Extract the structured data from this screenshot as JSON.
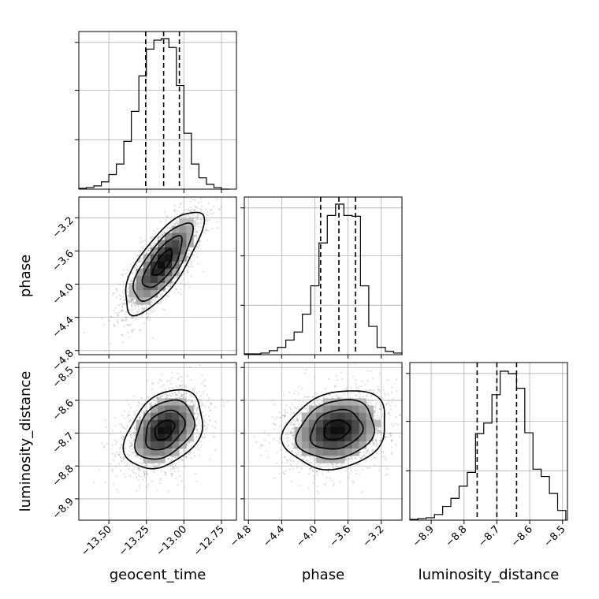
{
  "chart_data": {
    "type": "corner",
    "parameters": [
      "geocent_time",
      "phase",
      "luminosity_distance"
    ],
    "grid": true,
    "axes": {
      "geocent_time": {
        "label": "geocent_time",
        "range": [
          -13.7,
          -12.65
        ],
        "ticks": [
          -13.5,
          -13.25,
          -13.0,
          -12.75
        ],
        "tick_labels": [
          "−13.50",
          "−13.25",
          "−13.00",
          "−12.75"
        ]
      },
      "phase": {
        "label": "phase",
        "range": [
          -4.85,
          -2.95
        ],
        "ticks": [
          -4.8,
          -4.4,
          -4.0,
          -3.6,
          -3.2
        ],
        "tick_labels": [
          "−4.8",
          "−4.4",
          "−4.0",
          "−3.6",
          "−3.2"
        ]
      },
      "luminosity_distance": {
        "label": "luminosity_distance",
        "range": [
          -8.965,
          -8.485
        ],
        "ticks": [
          -8.9,
          -8.8,
          -8.7,
          -8.6,
          -8.5
        ],
        "tick_labels": [
          "−8.9",
          "−8.8",
          "−8.7",
          "−8.6",
          "−8.5"
        ]
      }
    },
    "histograms": [
      {
        "param": "geocent_time",
        "bins": [
          -13.7,
          -13.65,
          -13.6,
          -13.55,
          -13.5,
          -13.45,
          -13.4,
          -13.35,
          -13.3,
          -13.25,
          -13.2,
          -13.15,
          -13.1,
          -13.05,
          -13.0,
          -12.95,
          -12.9,
          -12.85,
          -12.8,
          -12.75,
          -12.7
        ],
        "counts": [
          1,
          2,
          4,
          9,
          18,
          31,
          59,
          96,
          140,
          173,
          184,
          186,
          175,
          128,
          69,
          31,
          14,
          6,
          2,
          0
        ],
        "quantiles": [
          -13.255,
          -13.135,
          -13.03
        ],
        "ymax": 185
      },
      {
        "param": "phase",
        "bins": [
          -4.85,
          -4.75,
          -4.65,
          -4.55,
          -4.45,
          -4.35,
          -4.25,
          -4.15,
          -4.05,
          -3.95,
          -3.85,
          -3.75,
          -3.65,
          -3.55,
          -3.45,
          -3.35,
          -3.25,
          -3.15,
          -3.05,
          -2.95
        ],
        "counts": [
          1,
          1,
          2,
          5,
          9,
          18,
          28,
          50,
          85,
          138,
          172,
          186,
          172,
          171,
          85,
          35,
          9,
          4,
          2
        ],
        "quantiles": [
          -3.93,
          -3.71,
          -3.51
        ],
        "ymax": 185
      },
      {
        "param": "luminosity_distance",
        "bins": [
          -8.965,
          -8.94,
          -8.915,
          -8.89,
          -8.865,
          -8.84,
          -8.815,
          -8.79,
          -8.765,
          -8.74,
          -8.715,
          -8.69,
          -8.665,
          -8.64,
          -8.615,
          -8.59,
          -8.565,
          -8.54,
          -8.515,
          -8.49
        ],
        "counts": [
          1,
          2,
          3,
          7,
          17,
          27,
          42,
          59,
          107,
          120,
          155,
          184,
          181,
          163,
          108,
          63,
          54,
          33,
          12
        ],
        "quantiles": [
          -8.76,
          -8.7,
          -8.64
        ],
        "ymax": 185
      }
    ],
    "joint_distributions": [
      {
        "x": "geocent_time",
        "y": "phase",
        "mean": [
          -13.14,
          -3.74
        ],
        "std": [
          0.13,
          0.31
        ],
        "corr": 0.75
      },
      {
        "x": "geocent_time",
        "y": "luminosity_distance",
        "mean": [
          -13.13,
          -8.69
        ],
        "std": [
          0.13,
          0.06
        ],
        "corr": 0.35
      },
      {
        "x": "phase",
        "y": "luminosity_distance",
        "mean": [
          -3.74,
          -8.69
        ],
        "std": [
          0.31,
          0.06
        ],
        "corr": 0.2
      }
    ],
    "contour_levels_sigma": [
      0.5,
      1.0,
      1.5,
      2.0
    ]
  },
  "colors": {
    "line": "#000000",
    "grid": "#b0b0b0",
    "scatter": "#7f7f7f"
  }
}
